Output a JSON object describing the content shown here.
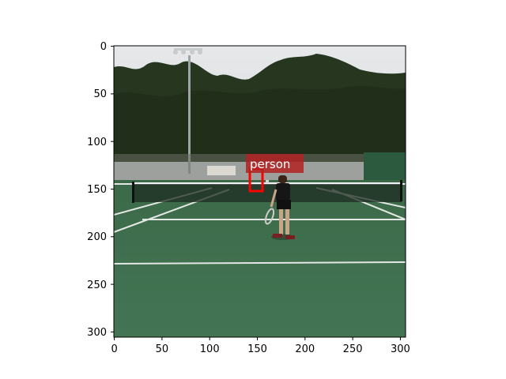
{
  "axes": {
    "x_ticks": [
      "0",
      "50",
      "100",
      "150",
      "200",
      "250",
      "300"
    ],
    "y_ticks": [
      "0",
      "50",
      "100",
      "150",
      "200",
      "250",
      "300"
    ]
  },
  "detection": {
    "label": "person",
    "box_color": "#ff0000",
    "label_bg": "#b22222"
  },
  "scene": {
    "description_colors": {
      "sky": "#d9dcdf",
      "trees": "#24331f",
      "court": "#3f6e4d",
      "lines": "#e8ece8"
    }
  }
}
